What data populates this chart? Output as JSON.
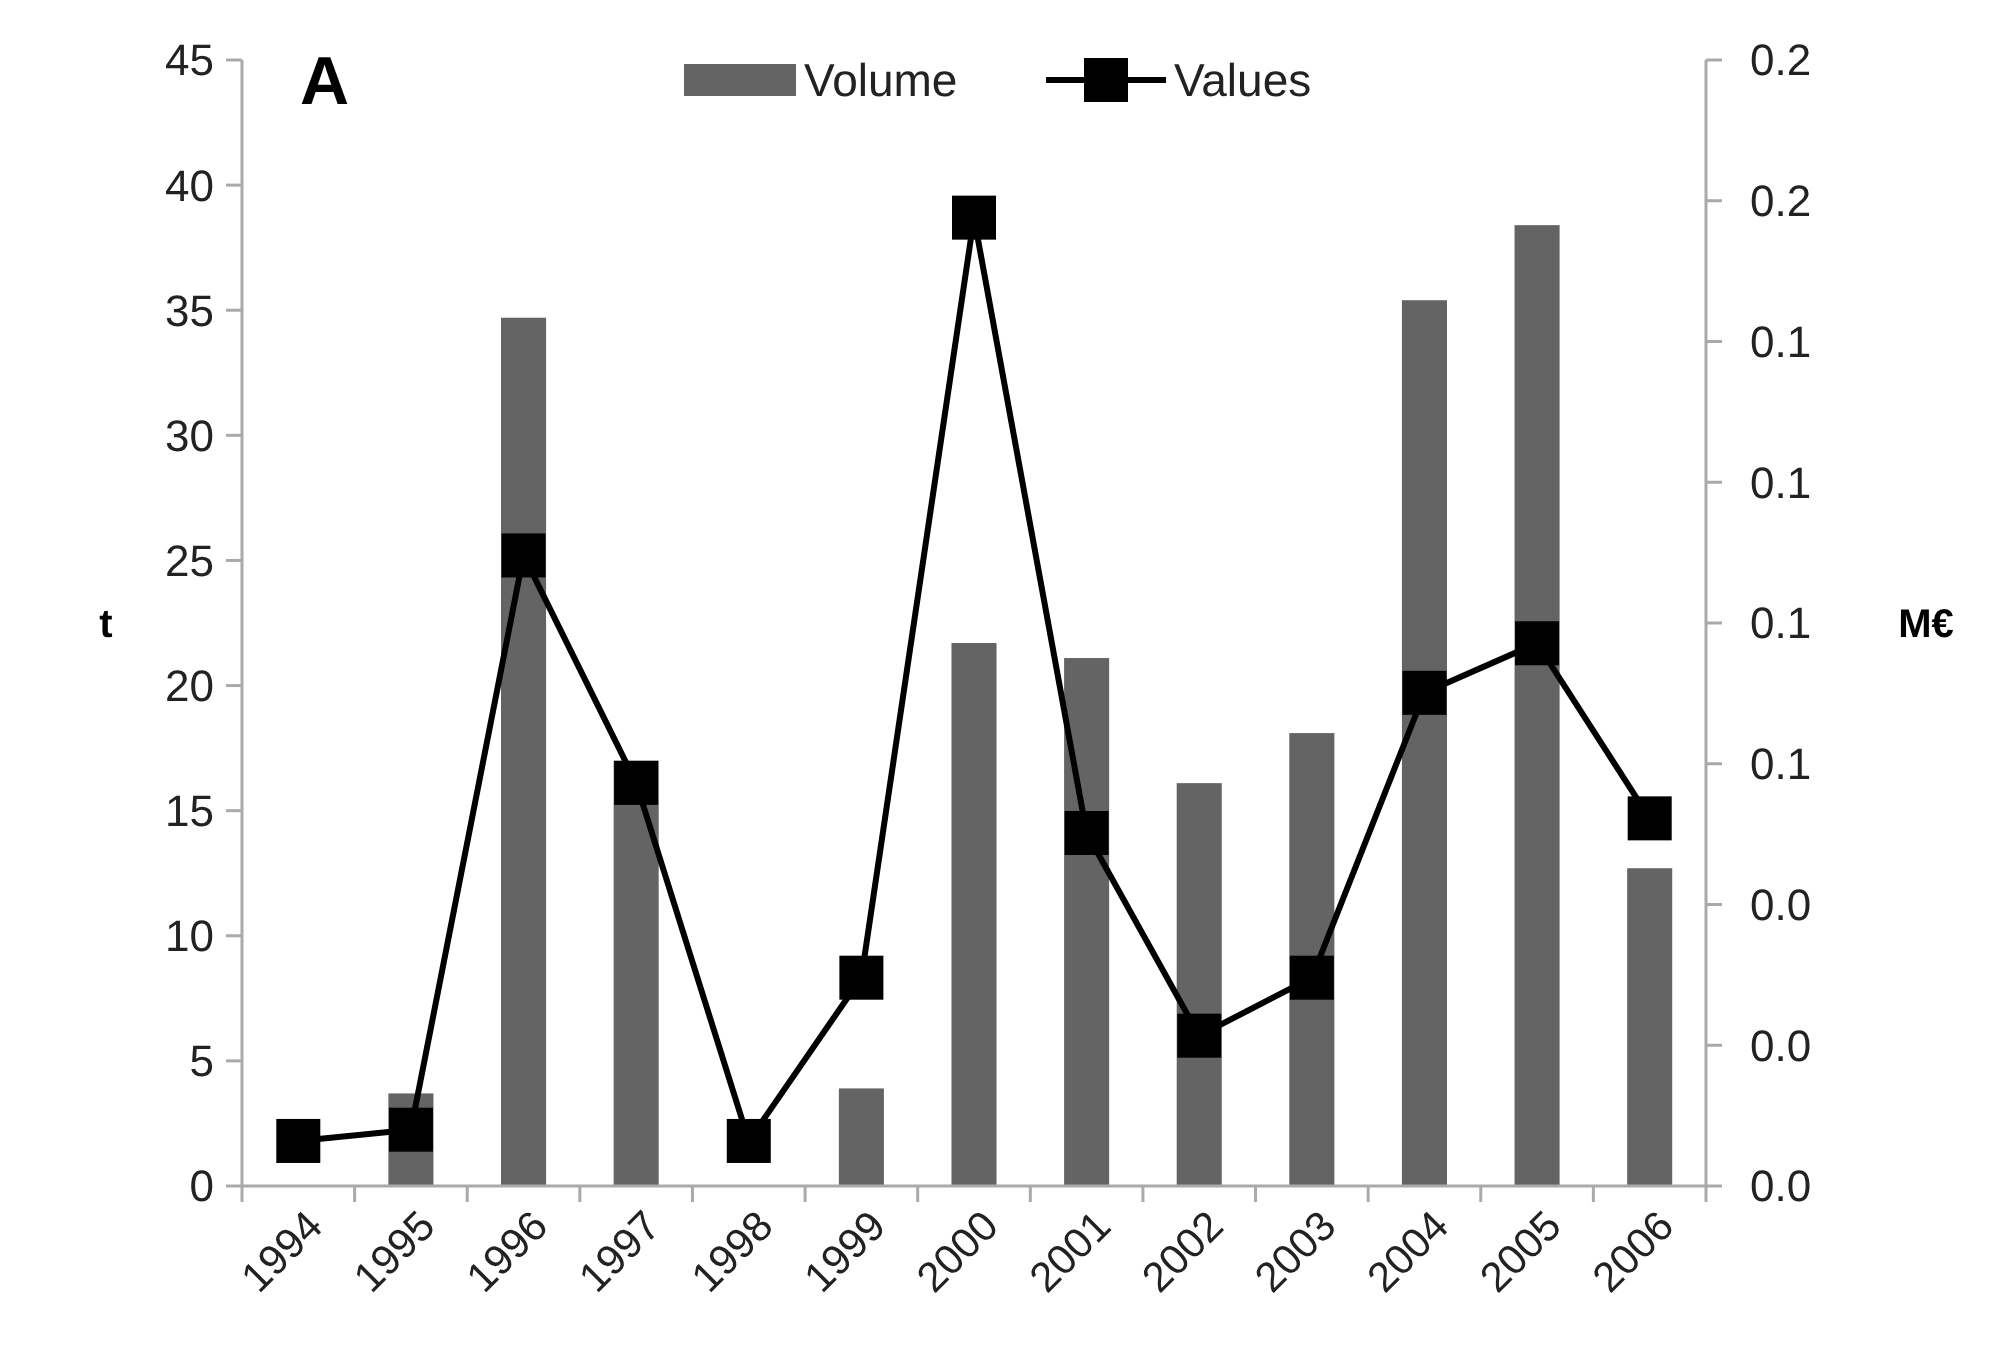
{
  "chart_data": {
    "type": "bar",
    "title": "A",
    "categories": [
      "1994",
      "1995",
      "1996",
      "1997",
      "1998",
      "1999",
      "2000",
      "2001",
      "2002",
      "2003",
      "2004",
      "2005",
      "2006"
    ],
    "series": [
      {
        "name": "Volume",
        "color": "#646464",
        "values": [
          null,
          3.7,
          34.7,
          17,
          null,
          3.9,
          21.7,
          21.1,
          16.1,
          18.1,
          35.4,
          38.4,
          12.7
        ]
      },
      {
        "name": "Values",
        "type": "line",
        "axis": "y2",
        "color": "#000000",
        "marker": "square",
        "values": [
          0.008,
          0.01,
          0.112,
          0.0716,
          0.008,
          0.037,
          0.172,
          0.0627,
          0.0267,
          0.037,
          0.0876,
          0.0964,
          0.0653
        ]
      }
    ],
    "ylabel": "t",
    "y2label": "M€",
    "ylim": [
      0,
      45
    ],
    "yticks": [
      0,
      5,
      10,
      15,
      20,
      25,
      30,
      35,
      40,
      45
    ],
    "y2lim": [
      0,
      0.2
    ],
    "y2ticks": [
      {
        "value": 0,
        "label": "0.0"
      },
      {
        "value": 0.025,
        "label": "0.0"
      },
      {
        "value": 0.05,
        "label": "0.0"
      },
      {
        "value": 0.075,
        "label": "0.1"
      },
      {
        "value": 0.1,
        "label": "0.1"
      },
      {
        "value": 0.125,
        "label": "0.1"
      },
      {
        "value": 0.15,
        "label": "0.1"
      },
      {
        "value": 0.175,
        "label": "0.2"
      },
      {
        "value": 0.2,
        "label": "0.2"
      }
    ],
    "legend": "top",
    "grid": false
  }
}
